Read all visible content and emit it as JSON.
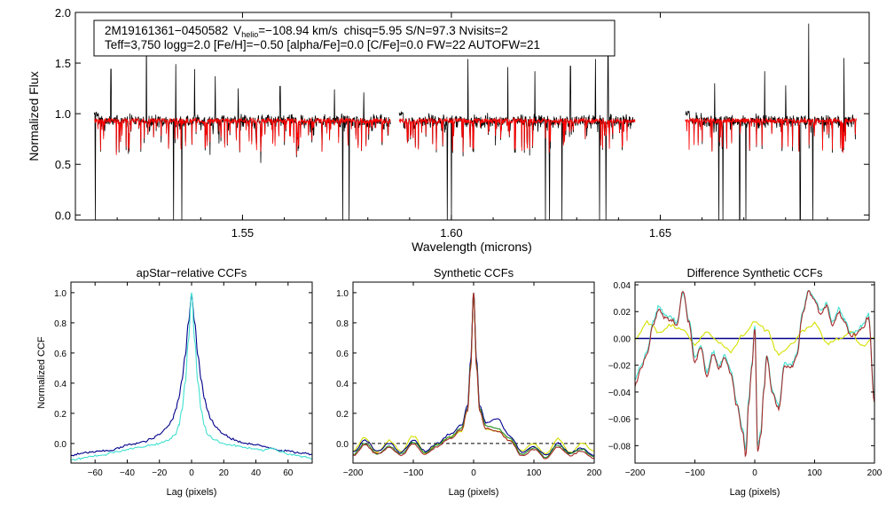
{
  "chart_data": [
    {
      "type": "line",
      "name": "spectrum",
      "xlabel": "Wavelength (microns)",
      "ylabel": "Normalized Flux",
      "xlim": [
        1.51,
        1.7
      ],
      "ylim": [
        -0.05,
        2.0
      ],
      "xticks": [
        "1.55",
        "1.60",
        "1.65"
      ],
      "xtick_values": [
        1.55,
        1.6,
        1.65
      ],
      "yticks": [
        "0.0",
        "0.5",
        "1.0",
        "1.5",
        "2.0"
      ],
      "ytick_values": [
        0.0,
        0.5,
        1.0,
        1.5,
        2.0
      ],
      "info_line1": {
        "star": "2M19161361−0450582",
        "v_label": "V",
        "v_sub": "helio",
        "v_value": "=−108.94 km/s",
        "rest": "chisq=5.95  S/N=97.3  Nvisits=2"
      },
      "info_line2": "Teff=3,750 logg=2.0 [Fe/H]=−0.50 [alpha/Fe]=0.0 [C/Fe]=0.0 FW=22 AUTOFW=21",
      "chips": [
        [
          1.5145,
          1.5855
        ],
        [
          1.5875,
          1.644
        ],
        [
          1.656,
          1.697
        ]
      ],
      "continuum": 0.93,
      "emission_lines": [
        [
          1.5185,
          1.44
        ],
        [
          1.527,
          1.82
        ],
        [
          1.534,
          1.49
        ],
        [
          1.5385,
          1.44
        ],
        [
          1.5435,
          1.37
        ],
        [
          1.549,
          1.25
        ],
        [
          1.559,
          1.27
        ],
        [
          1.572,
          1.24
        ],
        [
          1.579,
          1.21
        ],
        [
          1.604,
          1.54
        ],
        [
          1.6135,
          1.46
        ],
        [
          1.62,
          1.42
        ],
        [
          1.6285,
          1.47
        ],
        [
          1.6345,
          1.54
        ],
        [
          1.6375,
          1.58
        ],
        [
          1.663,
          1.3
        ],
        [
          1.675,
          1.42
        ],
        [
          1.68,
          1.28
        ],
        [
          1.6855,
          1.89
        ],
        [
          1.694,
          1.55
        ]
      ],
      "absorption_lines": [
        [
          1.5148,
          -0.05
        ],
        [
          1.5335,
          -0.05
        ],
        [
          1.5355,
          -0.05
        ],
        [
          1.574,
          -0.05
        ],
        [
          1.5755,
          -0.05
        ],
        [
          1.599,
          -0.05
        ],
        [
          1.6,
          -0.05
        ],
        [
          1.6225,
          -0.05
        ],
        [
          1.6235,
          -0.05
        ],
        [
          1.6265,
          -0.05
        ],
        [
          1.6355,
          -0.05
        ],
        [
          1.637,
          -0.05
        ],
        [
          1.664,
          -0.05
        ],
        [
          1.665,
          -0.05
        ],
        [
          1.669,
          -0.05
        ],
        [
          1.6705,
          -0.05
        ],
        [
          1.6835,
          -0.05
        ],
        [
          1.6865,
          -0.05
        ]
      ],
      "series": [
        {
          "name": "observed",
          "color": "#000000"
        },
        {
          "name": "model",
          "color": "#ff0000"
        }
      ]
    },
    {
      "type": "line",
      "name": "apstar-ccf",
      "title": "apStar−relative CCFs",
      "xlabel": "Lag (pixels)",
      "ylabel": "Normalized CCF",
      "xlim": [
        -75,
        75
      ],
      "ylim": [
        -0.13,
        1.07
      ],
      "xticks": [
        "−60",
        "−40",
        "−20",
        "0",
        "20",
        "40",
        "60"
      ],
      "xtick_values": [
        -60,
        -40,
        -20,
        0,
        20,
        40,
        60
      ],
      "yticks": [
        "0.0",
        "0.2",
        "0.4",
        "0.6",
        "0.8",
        "1.0"
      ],
      "ytick_values": [
        0.0,
        0.2,
        0.4,
        0.6,
        0.8,
        1.0
      ],
      "series": [
        {
          "name": "combined",
          "color": "#00008b",
          "x": [
            -75,
            -70,
            -65,
            -60,
            -55,
            -50,
            -45,
            -40,
            -35,
            -30,
            -25,
            -20,
            -15,
            -12,
            -10,
            -8,
            -6,
            -4,
            -2,
            0,
            2,
            4,
            6,
            8,
            10,
            12,
            15,
            20,
            25,
            30,
            35,
            40,
            45,
            50,
            55,
            60,
            65,
            70,
            75
          ],
          "y": [
            -0.08,
            -0.07,
            -0.06,
            -0.055,
            -0.05,
            -0.045,
            -0.03,
            -0.01,
            0.0,
            0.01,
            0.03,
            0.06,
            0.11,
            0.16,
            0.22,
            0.3,
            0.42,
            0.58,
            0.8,
            0.98,
            0.8,
            0.58,
            0.42,
            0.3,
            0.22,
            0.16,
            0.11,
            0.06,
            0.03,
            0.01,
            0.0,
            -0.01,
            -0.02,
            -0.03,
            -0.045,
            -0.05,
            -0.06,
            -0.065,
            -0.07
          ]
        },
        {
          "name": "visit",
          "color": "#40e0d0",
          "x": [
            -75,
            -70,
            -65,
            -60,
            -55,
            -50,
            -45,
            -40,
            -35,
            -30,
            -25,
            -20,
            -15,
            -10,
            -8,
            -6,
            -4,
            -2,
            0,
            2,
            4,
            6,
            8,
            10,
            15,
            20,
            25,
            30,
            35,
            40,
            45,
            50,
            55,
            60,
            65,
            70,
            75
          ],
          "y": [
            -0.11,
            -0.1,
            -0.09,
            -0.08,
            -0.08,
            -0.06,
            -0.05,
            -0.04,
            -0.03,
            -0.02,
            -0.01,
            0.0,
            0.02,
            0.06,
            0.12,
            0.22,
            0.4,
            0.68,
            1.0,
            0.68,
            0.4,
            0.22,
            0.12,
            0.06,
            0.02,
            0.0,
            -0.01,
            -0.02,
            -0.03,
            -0.04,
            -0.045,
            -0.03,
            -0.05,
            -0.07,
            -0.08,
            -0.09,
            -0.1
          ]
        }
      ]
    },
    {
      "type": "line",
      "name": "synthetic-ccf",
      "title": "Synthetic CCFs",
      "xlabel": "Lag (pixels)",
      "xlim": [
        -200,
        200
      ],
      "ylim": [
        -0.13,
        1.07
      ],
      "xticks": [
        "−200",
        "−100",
        "0",
        "100",
        "200"
      ],
      "xtick_values": [
        -200,
        -100,
        0,
        100,
        200
      ],
      "yticks": [
        "0.0",
        "0.2",
        "0.4",
        "0.6",
        "0.8",
        "1.0"
      ],
      "ytick_values": [
        0.0,
        0.2,
        0.4,
        0.6,
        0.8,
        1.0
      ],
      "zero_line": true,
      "series": [
        {
          "name": "yellow",
          "color": "#d4e000",
          "x": [
            -200,
            -180,
            -160,
            -140,
            -120,
            -100,
            -80,
            -60,
            -40,
            -20,
            -10,
            -5,
            0,
            5,
            10,
            20,
            40,
            60,
            80,
            100,
            120,
            140,
            160,
            180,
            200
          ],
          "y": [
            -0.05,
            0.04,
            -0.06,
            0.02,
            -0.05,
            0.05,
            -0.06,
            0.0,
            0.04,
            0.08,
            0.22,
            0.5,
            0.98,
            0.5,
            0.22,
            0.1,
            0.08,
            0.02,
            -0.05,
            0.0,
            -0.07,
            0.03,
            -0.06,
            0.0,
            -0.05
          ]
        },
        {
          "name": "navy",
          "color": "#00008b",
          "x": [
            -200,
            -180,
            -160,
            -140,
            -120,
            -100,
            -80,
            -60,
            -40,
            -20,
            -10,
            -5,
            0,
            5,
            10,
            20,
            40,
            60,
            80,
            100,
            120,
            140,
            160,
            180,
            200
          ],
          "y": [
            -0.06,
            0.02,
            -0.05,
            0.0,
            -0.06,
            0.02,
            -0.05,
            0.0,
            0.06,
            0.12,
            0.25,
            0.55,
            0.99,
            0.55,
            0.25,
            0.14,
            0.16,
            0.05,
            -0.06,
            -0.02,
            -0.08,
            0.0,
            -0.06,
            -0.03,
            -0.08
          ]
        },
        {
          "name": "green",
          "color": "#228b22",
          "x": [
            -200,
            -180,
            -160,
            -140,
            -120,
            -100,
            -80,
            -60,
            -40,
            -20,
            -10,
            -5,
            0,
            5,
            10,
            20,
            40,
            60,
            80,
            100,
            120,
            140,
            160,
            180,
            200
          ],
          "y": [
            -0.07,
            0.0,
            -0.07,
            -0.02,
            -0.07,
            0.01,
            -0.06,
            -0.01,
            0.04,
            0.1,
            0.23,
            0.52,
            1.0,
            0.52,
            0.23,
            0.12,
            0.1,
            0.03,
            -0.07,
            -0.03,
            -0.09,
            -0.01,
            -0.07,
            -0.04,
            -0.09
          ]
        },
        {
          "name": "brown",
          "color": "#a52a2a",
          "x": [
            -200,
            -180,
            -160,
            -140,
            -120,
            -100,
            -80,
            -60,
            -40,
            -20,
            -10,
            -5,
            0,
            5,
            10,
            20,
            40,
            60,
            80,
            100,
            120,
            140,
            160,
            180,
            200
          ],
          "y": [
            -0.08,
            -0.01,
            -0.07,
            -0.03,
            -0.08,
            0.0,
            -0.07,
            -0.02,
            0.03,
            0.09,
            0.22,
            0.5,
            1.0,
            0.5,
            0.22,
            0.1,
            0.08,
            0.02,
            -0.08,
            -0.04,
            -0.1,
            -0.02,
            -0.08,
            -0.05,
            -0.1
          ]
        }
      ]
    },
    {
      "type": "line",
      "name": "difference-ccf",
      "title": "Difference Synthetic CCFs",
      "xlabel": "Lag (pixels)",
      "xlim": [
        -200,
        200
      ],
      "ylim": [
        -0.093,
        0.042
      ],
      "xticks": [
        "−200",
        "−100",
        "0",
        "100",
        "200"
      ],
      "xtick_values": [
        -200,
        -100,
        0,
        100,
        200
      ],
      "yticks": [
        "0.04",
        "0.02",
        "0.00",
        "−0.02",
        "−0.04",
        "−0.06",
        "−0.08"
      ],
      "ytick_values": [
        0.04,
        0.02,
        0.0,
        -0.02,
        -0.04,
        -0.06,
        -0.08
      ],
      "zero_line": true,
      "series": [
        {
          "name": "yellow",
          "color": "#d4e000",
          "x": [
            -200,
            -180,
            -160,
            -140,
            -120,
            -100,
            -80,
            -60,
            -40,
            -20,
            0,
            20,
            40,
            60,
            80,
            100,
            120,
            140,
            160,
            180,
            200
          ],
          "y": [
            0.0,
            0.012,
            0.005,
            0.01,
            0.006,
            -0.004,
            0.004,
            -0.003,
            -0.01,
            0.002,
            0.013,
            0.006,
            -0.012,
            -0.005,
            0.006,
            0.011,
            -0.004,
            0.0,
            0.004,
            -0.005,
            0.0
          ]
        },
        {
          "name": "cyan",
          "color": "#40e0d0",
          "x": [
            -200,
            -190,
            -180,
            -170,
            -160,
            -150,
            -140,
            -130,
            -120,
            -110,
            -100,
            -90,
            -80,
            -70,
            -60,
            -50,
            -40,
            -30,
            -20,
            -15,
            -10,
            -5,
            0,
            5,
            10,
            15,
            20,
            30,
            40,
            50,
            60,
            70,
            80,
            90,
            100,
            110,
            120,
            130,
            140,
            150,
            160,
            170,
            180,
            190,
            200
          ],
          "y": [
            -0.03,
            -0.02,
            -0.01,
            0.012,
            0.024,
            0.017,
            0.016,
            0.012,
            0.034,
            0.014,
            -0.014,
            -0.005,
            -0.025,
            -0.01,
            -0.02,
            -0.013,
            -0.024,
            -0.048,
            -0.068,
            -0.082,
            -0.045,
            -0.02,
            0.01,
            -0.08,
            -0.07,
            -0.038,
            -0.012,
            -0.04,
            -0.05,
            -0.018,
            -0.02,
            -0.012,
            0.02,
            0.036,
            0.03,
            0.02,
            0.026,
            0.012,
            0.022,
            0.014,
            0.004,
            0.005,
            0.01,
            0.018,
            -0.045
          ]
        },
        {
          "name": "brown",
          "color": "#a52a2a",
          "x": [
            -200,
            -190,
            -180,
            -170,
            -160,
            -150,
            -140,
            -130,
            -120,
            -110,
            -100,
            -90,
            -80,
            -70,
            -60,
            -50,
            -40,
            -30,
            -20,
            -15,
            -10,
            -5,
            0,
            5,
            10,
            15,
            20,
            30,
            40,
            50,
            60,
            70,
            80,
            90,
            100,
            110,
            120,
            130,
            140,
            150,
            160,
            170,
            180,
            190,
            200
          ],
          "y": [
            -0.035,
            -0.022,
            -0.012,
            0.01,
            0.022,
            0.015,
            0.014,
            0.01,
            0.035,
            0.012,
            -0.018,
            -0.006,
            -0.028,
            -0.012,
            -0.022,
            -0.015,
            -0.026,
            -0.05,
            -0.07,
            -0.088,
            -0.048,
            -0.022,
            0.008,
            -0.084,
            -0.072,
            -0.04,
            -0.014,
            -0.042,
            -0.052,
            -0.02,
            -0.022,
            -0.014,
            0.018,
            0.035,
            0.028,
            0.018,
            0.024,
            0.01,
            0.02,
            0.012,
            0.002,
            0.003,
            0.008,
            0.016,
            -0.048
          ]
        }
      ]
    }
  ]
}
